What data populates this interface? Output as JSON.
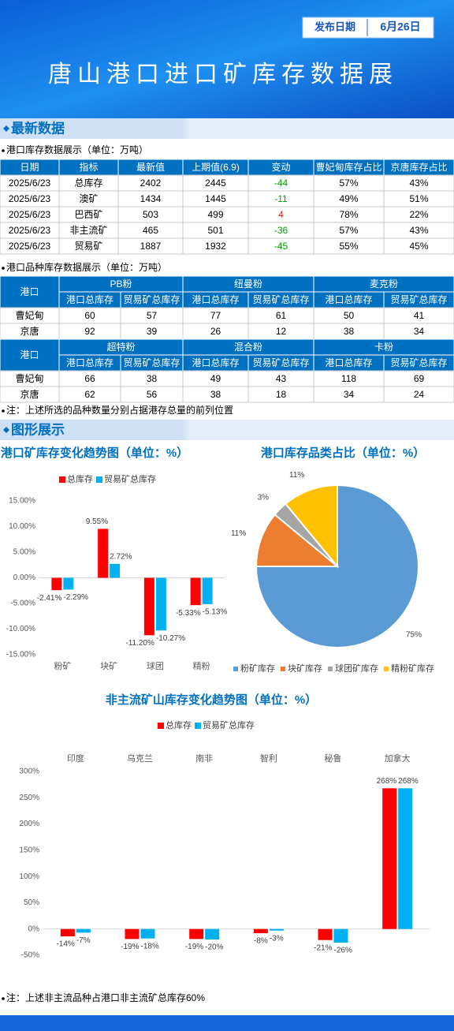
{
  "header": {
    "title": "唐山港口进口矿库存数据展",
    "date_label": "发布日期",
    "date": "6月26日"
  },
  "sections": [
    "最新数据",
    "图形展示"
  ],
  "table1": {
    "caption": "港口库存数据展示（单位：万吨）",
    "columns": [
      "日期",
      "指标",
      "最新值",
      "上期值(6.9)",
      "变动",
      "曹妃甸库存占比",
      "京唐库存占比"
    ],
    "rows": [
      [
        "2025/6/23",
        "总库存",
        2402,
        2445,
        -44,
        "57%",
        "43%"
      ],
      [
        "2025/6/23",
        "澳矿",
        1434,
        1445,
        -11,
        "49%",
        "51%"
      ],
      [
        "2025/6/23",
        "巴西矿",
        503,
        499,
        4,
        "78%",
        "22%"
      ],
      [
        "2025/6/23",
        "非主流矿",
        465,
        501,
        -36,
        "57%",
        "43%"
      ],
      [
        "2025/6/23",
        "贸易矿",
        1887,
        1932,
        -45,
        "55%",
        "45%"
      ]
    ]
  },
  "table2": {
    "caption": "港口品种库存数据展示（单位：万吨）",
    "port_header": "港口",
    "sub_headers": [
      "港口总库存",
      "贸易矿总库存"
    ],
    "groups": [
      {
        "products": [
          "PB粉",
          "纽曼粉",
          "麦克粉"
        ],
        "rows": [
          {
            "port": "曹妃甸",
            "values": [
              60,
              57,
              77,
              61,
              50,
              41
            ]
          },
          {
            "port": "京唐",
            "values": [
              92,
              39,
              26,
              12,
              38,
              34
            ]
          }
        ]
      },
      {
        "products": [
          "超特粉",
          "混合粉",
          "卡粉"
        ],
        "rows": [
          {
            "port": "曹妃甸",
            "values": [
              66,
              38,
              49,
              43,
              118,
              69
            ]
          },
          {
            "port": "京唐",
            "values": [
              62,
              56,
              38,
              18,
              34,
              24
            ]
          }
        ]
      }
    ],
    "note": "注：上述所选的品种数量分别占据港存总量的前列位置"
  },
  "chart_data": [
    {
      "type": "bar",
      "title": "港口矿库存变化趋势图（单位：%）",
      "categories": [
        "粉矿",
        "块矿",
        "球团",
        "精粉"
      ],
      "series": [
        {
          "name": "总库存",
          "color": "#ff0000",
          "values": [
            -2.41,
            9.55,
            -11.2,
            -5.33
          ],
          "value_labels": [
            "-2.41%",
            "9.55%",
            "-11.20%",
            "-5.33%"
          ]
        },
        {
          "name": "贸易矿总库存",
          "color": "#00b0f0",
          "values": [
            -2.29,
            2.72,
            -10.27,
            -5.13
          ],
          "value_labels": [
            "-2.29%",
            "2.72%",
            "-10.27%",
            "-5.13%"
          ]
        }
      ],
      "ylim": [
        -15,
        15
      ],
      "yticks": [
        {
          "value": 15,
          "label": "15.00%"
        },
        {
          "value": 10,
          "label": "10.00%"
        },
        {
          "value": 5,
          "label": "5.00%"
        },
        {
          "value": 0,
          "label": "0.00%"
        },
        {
          "value": -5,
          "label": "-5.00%"
        },
        {
          "value": -10,
          "label": "-10.00%"
        },
        {
          "value": -15,
          "label": "-15.00%"
        }
      ],
      "grid": false
    },
    {
      "type": "pie",
      "title": "港口库存品类占比（单位：%）",
      "categories": [
        "粉矿库存",
        "块矿库存",
        "球团矿库存",
        "精粉矿库存"
      ],
      "values": [
        75,
        11,
        3,
        11
      ],
      "value_labels": [
        "75%",
        "11%",
        "3%",
        "11%"
      ],
      "colors": [
        "#5b9bd5",
        "#ed7d31",
        "#a5a5a5",
        "#ffc000"
      ]
    },
    {
      "type": "bar",
      "title": "非主流矿山库存变化趋势图（单位：%）",
      "categories": [
        "印度",
        "乌克兰",
        "南非",
        "智利",
        "秘鲁",
        "加拿大"
      ],
      "series": [
        {
          "name": "总库存",
          "color": "#ff0000",
          "values": [
            -14,
            -19,
            -19,
            -8,
            -21,
            268
          ],
          "value_labels": [
            "-14%",
            "-19%",
            "-19%",
            "-8%",
            "-21%",
            "268%"
          ]
        },
        {
          "name": "贸易矿总库存",
          "color": "#00b0f0",
          "values": [
            -7,
            -18,
            -20,
            -3,
            -26,
            268
          ],
          "value_labels": [
            "-7%",
            "-18%",
            "-20%",
            "-3%",
            "-26%",
            "268%"
          ]
        }
      ],
      "ylim": [
        -50,
        300
      ],
      "yticks": [
        {
          "value": 300,
          "label": "300%"
        },
        {
          "value": 250,
          "label": "250%"
        },
        {
          "value": 200,
          "label": "200%"
        },
        {
          "value": 150,
          "label": "150%"
        },
        {
          "value": 100,
          "label": "100%"
        },
        {
          "value": 50,
          "label": "50%"
        },
        {
          "value": 0,
          "label": "0%"
        },
        {
          "value": -50,
          "label": "-50%"
        }
      ],
      "grid": false
    }
  ],
  "note2": "注：上述非主流品种占港口非主流矿总库存60%"
}
